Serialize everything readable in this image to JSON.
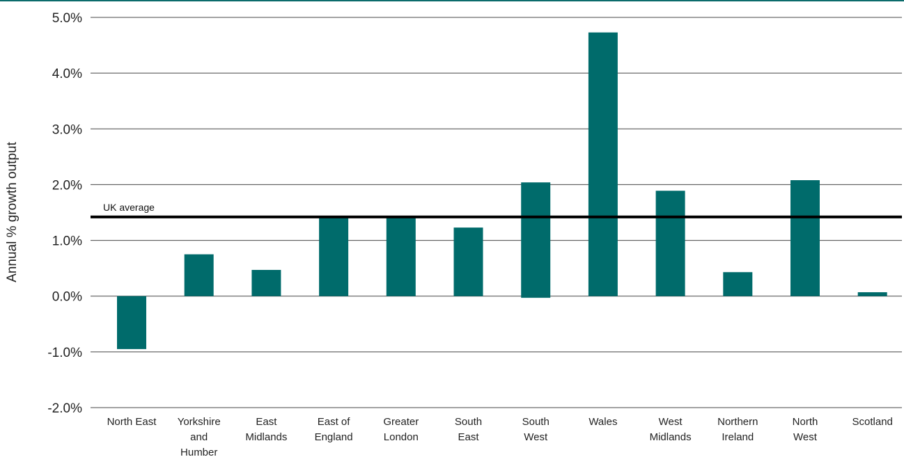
{
  "chart_data": {
    "type": "bar",
    "title": "",
    "xlabel": "",
    "ylabel": "Annual % growth output",
    "ylim": [
      -2.0,
      5.0
    ],
    "y_ticks": [
      "-2.0%",
      "-1.0%",
      "0.0%",
      "1.0%",
      "2.0%",
      "3.0%",
      "4.0%",
      "5.0%"
    ],
    "y_tick_values": [
      -2,
      -1,
      0,
      1,
      2,
      3,
      4,
      5
    ],
    "categories": [
      [
        "North East"
      ],
      [
        "Yorkshire",
        "and",
        "Humber"
      ],
      [
        "East",
        "Midlands"
      ],
      [
        "East of",
        "England"
      ],
      [
        "Greater",
        "London"
      ],
      [
        "South",
        "East"
      ],
      [
        "South",
        "West"
      ],
      [
        "Wales"
      ],
      [
        "West",
        "Midlands"
      ],
      [
        "Northern",
        "Ireland"
      ],
      [
        "North",
        "West"
      ],
      [
        "Scotland"
      ]
    ],
    "values": [
      -0.95,
      0.75,
      0.47,
      1.42,
      1.42,
      1.23,
      2.04,
      4.73,
      1.89,
      0.43,
      2.08,
      0.07
    ],
    "extra_segments": [
      {
        "category_index": 6,
        "from": 0,
        "to": -0.03
      }
    ],
    "reference_line": {
      "label": "UK average",
      "value": 1.42
    },
    "grid": true,
    "legend": "none",
    "colors": {
      "bar": "#006b6b",
      "reference": "#000000",
      "grid": "#444444",
      "text": "#222222"
    }
  }
}
